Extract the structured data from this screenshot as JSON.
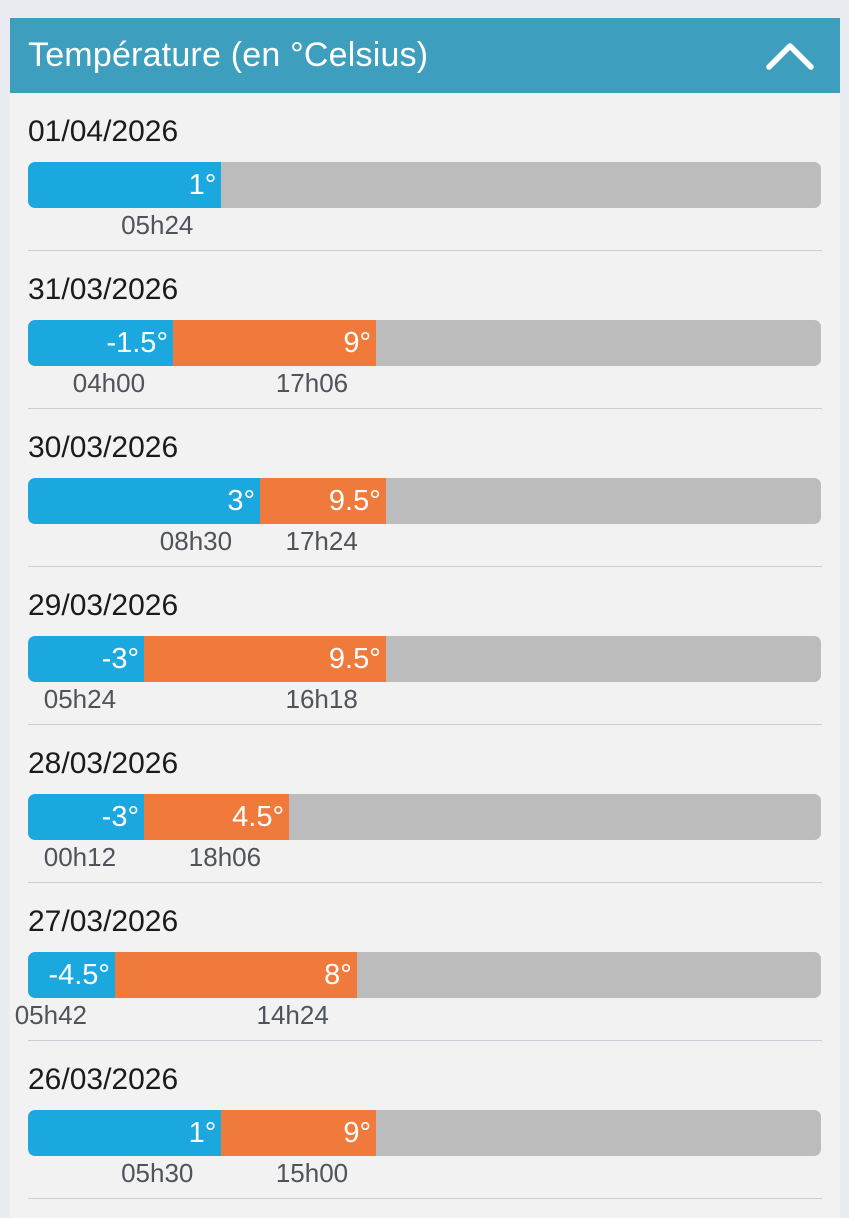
{
  "header": {
    "title": "Température (en °Celsius)",
    "collapse_icon": "chevron-up-icon"
  },
  "colors": {
    "header": "#3d9fbd",
    "min_bar": "#1ba8df",
    "max_bar": "#f07a3c",
    "track": "#bcbcbc"
  },
  "scale": {
    "min": -9,
    "max": 32
  },
  "days": [
    {
      "date": "01/04/2026",
      "min_value": 1,
      "min_label": "1°",
      "min_time": "05h24",
      "max_value": null,
      "max_label": "",
      "max_time": ""
    },
    {
      "date": "31/03/2026",
      "min_value": -1.5,
      "min_label": "-1.5°",
      "min_time": "04h00",
      "max_value": 9,
      "max_label": "9°",
      "max_time": "17h06"
    },
    {
      "date": "30/03/2026",
      "min_value": 3,
      "min_label": "3°",
      "min_time": "08h30",
      "max_value": 9.5,
      "max_label": "9.5°",
      "max_time": "17h24"
    },
    {
      "date": "29/03/2026",
      "min_value": -3,
      "min_label": "-3°",
      "min_time": "05h24",
      "max_value": 9.5,
      "max_label": "9.5°",
      "max_time": "16h18"
    },
    {
      "date": "28/03/2026",
      "min_value": -3,
      "min_label": "-3°",
      "min_time": "00h12",
      "max_value": 4.5,
      "max_label": "4.5°",
      "max_time": "18h06"
    },
    {
      "date": "27/03/2026",
      "min_value": -4.5,
      "min_label": "-4.5°",
      "min_time": "05h42",
      "max_value": 8,
      "max_label": "8°",
      "max_time": "14h24"
    },
    {
      "date": "26/03/2026",
      "min_value": 1,
      "min_label": "1°",
      "min_time": "05h30",
      "max_value": 9,
      "max_label": "9°",
      "max_time": "15h00"
    }
  ]
}
